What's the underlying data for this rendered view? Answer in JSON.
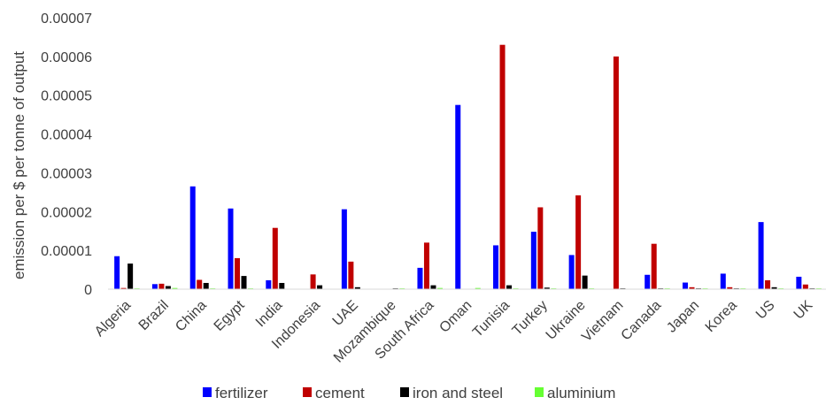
{
  "chart_data": {
    "type": "bar",
    "title": "",
    "xlabel": "",
    "ylabel": "emission per $ per tonne of output",
    "ylim": [
      0,
      7e-05
    ],
    "yticks": [
      "0",
      "0.00001",
      "0.00002",
      "0.00003",
      "0.00004",
      "0.00005",
      "0.00006",
      "0.00007"
    ],
    "grid": false,
    "legend_position": "bottom",
    "categories": [
      "Algeria",
      "Brazil",
      "China",
      "Egypt",
      "India",
      "Indonesia",
      "UAE",
      "Mozambique",
      "South Africa",
      "Oman",
      "Tunisia",
      "Turkey",
      "Ukraine",
      "Vietnam",
      "Canada",
      "Japan",
      "Korea",
      "US",
      "UK"
    ],
    "series": [
      {
        "name": "fertilizer",
        "color": "#0000ff",
        "values": [
          8.5e-06,
          1.3e-06,
          2.65e-05,
          2.08e-05,
          2.3e-06,
          0,
          2.06e-05,
          0,
          5.5e-06,
          4.75e-05,
          1.13e-05,
          1.48e-05,
          8.8e-06,
          0,
          3.7e-06,
          1.7e-06,
          4e-06,
          1.73e-05,
          3.2e-06
        ]
      },
      {
        "name": "cement",
        "color": "#c00000",
        "values": [
          3e-07,
          1.4e-06,
          2.4e-06,
          8e-06,
          1.58e-05,
          3.8e-06,
          7.1e-06,
          0,
          1.2e-05,
          0,
          6.3e-05,
          2.11e-05,
          2.42e-05,
          6e-05,
          1.17e-05,
          5e-07,
          5e-07,
          2.3e-06,
          1.2e-06
        ]
      },
      {
        "name": "iron and steel",
        "color": "#000000",
        "values": [
          6.6e-06,
          8e-07,
          1.6e-06,
          3.4e-06,
          1.6e-06,
          1e-06,
          5e-07,
          2e-07,
          1e-06,
          0,
          1e-06,
          4e-07,
          3.5e-06,
          2e-07,
          2e-07,
          2e-07,
          2e-07,
          5e-07,
          2e-07
        ]
      },
      {
        "name": "aluminium",
        "color": "#66ff33",
        "values": [
          2e-07,
          3e-07,
          2e-07,
          2e-07,
          1e-07,
          1e-07,
          1e-07,
          2e-07,
          3e-07,
          3e-07,
          2e-07,
          2e-07,
          2e-07,
          1e-07,
          2e-07,
          2e-07,
          2e-07,
          2e-07,
          2e-07
        ]
      }
    ]
  }
}
